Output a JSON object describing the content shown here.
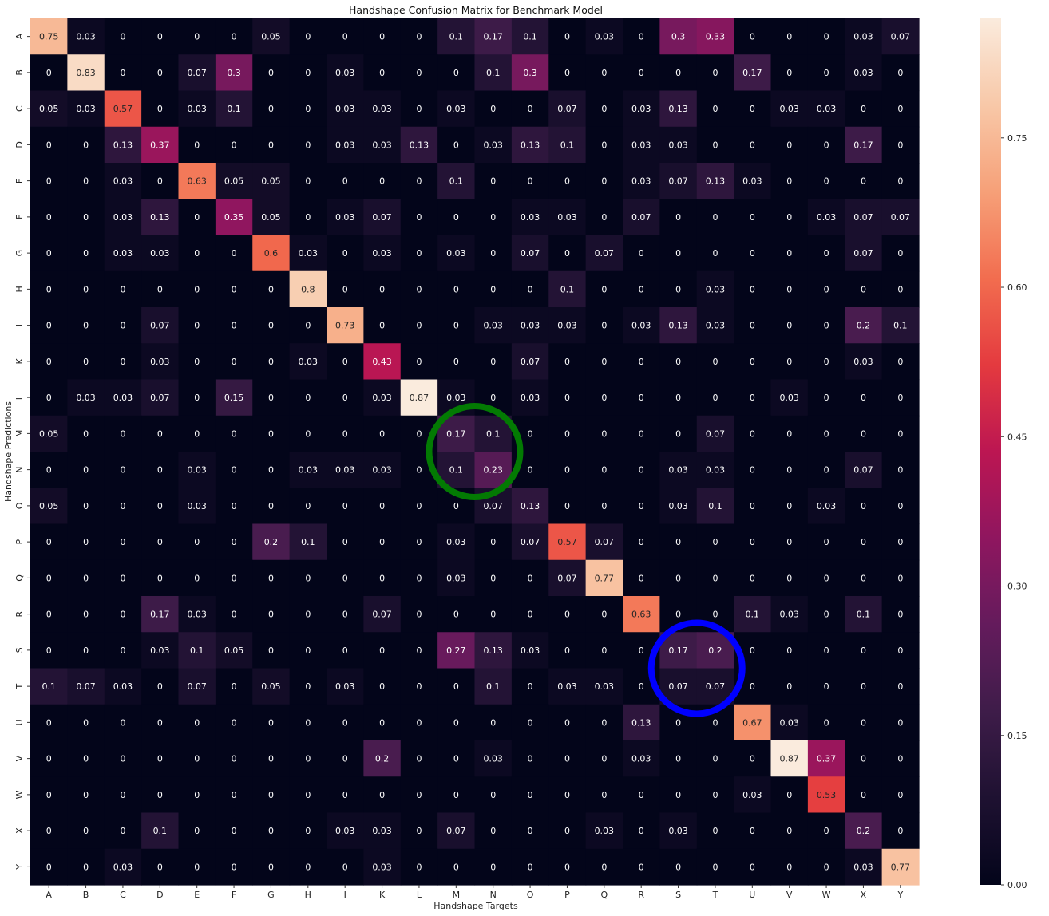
{
  "chart_data": {
    "type": "heatmap",
    "title": "Handshape Confusion Matrix for Benchmark Model",
    "xlabel": "Handshape Targets",
    "ylabel": "Handshape Predictions",
    "x_categories": [
      "A",
      "B",
      "C",
      "D",
      "E",
      "F",
      "G",
      "H",
      "I",
      "K",
      "L",
      "M",
      "N",
      "O",
      "P",
      "Q",
      "R",
      "S",
      "T",
      "U",
      "V",
      "W",
      "X",
      "Y"
    ],
    "y_categories": [
      "A",
      "B",
      "C",
      "D",
      "E",
      "F",
      "G",
      "H",
      "I",
      "K",
      "L",
      "M",
      "N",
      "O",
      "P",
      "Q",
      "R",
      "S",
      "T",
      "U",
      "V",
      "W",
      "X",
      "Y"
    ],
    "values": [
      [
        0.75,
        0.03,
        0,
        0,
        0,
        0,
        0.05,
        0,
        0,
        0,
        0,
        0.1,
        0.17,
        0.1,
        0,
        0.03,
        0,
        0.3,
        0.33,
        0,
        0,
        0,
        0.03,
        0.07
      ],
      [
        0,
        0.83,
        0,
        0,
        0.07,
        0.3,
        0,
        0,
        0.03,
        0,
        0,
        0,
        0.1,
        0.3,
        0,
        0,
        0,
        0,
        0,
        0.17,
        0,
        0,
        0.03,
        0
      ],
      [
        0.05,
        0.03,
        0.57,
        0,
        0.03,
        0.1,
        0,
        0,
        0.03,
        0.03,
        0,
        0.03,
        0,
        0,
        0.07,
        0,
        0.03,
        0.13,
        0,
        0,
        0.03,
        0.03,
        0,
        0
      ],
      [
        0,
        0,
        0.13,
        0.37,
        0,
        0,
        0,
        0,
        0.03,
        0.03,
        0.13,
        0,
        0.03,
        0.13,
        0.1,
        0,
        0.03,
        0.03,
        0,
        0,
        0,
        0,
        0.17,
        0
      ],
      [
        0,
        0,
        0.03,
        0,
        0.63,
        0.05,
        0.05,
        0,
        0,
        0,
        0,
        0.1,
        0,
        0,
        0,
        0,
        0.03,
        0.07,
        0.13,
        0.03,
        0,
        0,
        0,
        0
      ],
      [
        0,
        0,
        0.03,
        0.13,
        0,
        0.35,
        0.05,
        0,
        0.03,
        0.07,
        0,
        0,
        0,
        0.03,
        0.03,
        0,
        0.07,
        0,
        0,
        0,
        0,
        0.03,
        0.07,
        0.07
      ],
      [
        0,
        0,
        0.03,
        0.03,
        0,
        0,
        0.6,
        0.03,
        0,
        0.03,
        0,
        0.03,
        0,
        0.07,
        0,
        0.07,
        0,
        0,
        0,
        0,
        0,
        0,
        0.07,
        0
      ],
      [
        0,
        0,
        0,
        0,
        0,
        0,
        0,
        0.8,
        0,
        0,
        0,
        0,
        0,
        0,
        0.1,
        0,
        0,
        0,
        0.03,
        0,
        0,
        0,
        0,
        0
      ],
      [
        0,
        0,
        0,
        0.07,
        0,
        0,
        0,
        0,
        0.73,
        0,
        0,
        0,
        0.03,
        0.03,
        0.03,
        0,
        0.03,
        0.13,
        0.03,
        0,
        0,
        0,
        0.2,
        0.1
      ],
      [
        0,
        0,
        0,
        0.03,
        0,
        0,
        0,
        0.03,
        0,
        0.43,
        0,
        0,
        0,
        0.07,
        0,
        0,
        0,
        0,
        0,
        0,
        0,
        0,
        0.03,
        0
      ],
      [
        0,
        0.03,
        0.03,
        0.07,
        0,
        0.15,
        0,
        0,
        0,
        0.03,
        0.87,
        0.03,
        0,
        0.03,
        0,
        0,
        0,
        0,
        0,
        0,
        0.03,
        0,
        0,
        0
      ],
      [
        0.05,
        0,
        0,
        0,
        0,
        0,
        0,
        0,
        0,
        0,
        0,
        0.17,
        0.1,
        0,
        0,
        0,
        0,
        0,
        0.07,
        0,
        0,
        0,
        0,
        0
      ],
      [
        0,
        0,
        0,
        0,
        0.03,
        0,
        0,
        0.03,
        0.03,
        0.03,
        0,
        0.1,
        0.23,
        0,
        0,
        0,
        0,
        0.03,
        0.03,
        0,
        0,
        0,
        0.07,
        0
      ],
      [
        0.05,
        0,
        0,
        0,
        0.03,
        0,
        0,
        0,
        0,
        0,
        0,
        0,
        0.07,
        0.13,
        0,
        0,
        0,
        0.03,
        0.1,
        0,
        0,
        0.03,
        0,
        0
      ],
      [
        0,
        0,
        0,
        0,
        0,
        0,
        0.2,
        0.1,
        0,
        0,
        0,
        0.03,
        0,
        0.07,
        0.57,
        0.07,
        0,
        0,
        0,
        0,
        0,
        0,
        0,
        0
      ],
      [
        0,
        0,
        0,
        0,
        0,
        0,
        0,
        0,
        0,
        0,
        0,
        0.03,
        0,
        0,
        0.07,
        0.77,
        0,
        0,
        0,
        0,
        0,
        0,
        0,
        0
      ],
      [
        0,
        0,
        0,
        0.17,
        0.03,
        0,
        0,
        0,
        0,
        0.07,
        0,
        0,
        0,
        0,
        0,
        0,
        0.63,
        0,
        0,
        0.1,
        0.03,
        0,
        0.1,
        0
      ],
      [
        0,
        0,
        0,
        0.03,
        0.1,
        0.05,
        0,
        0,
        0,
        0,
        0,
        0.27,
        0.13,
        0.03,
        0,
        0,
        0,
        0.17,
        0.2,
        0,
        0,
        0,
        0,
        0
      ],
      [
        0.1,
        0.07,
        0.03,
        0,
        0.07,
        0,
        0.05,
        0,
        0.03,
        0,
        0,
        0,
        0.1,
        0,
        0.03,
        0.03,
        0,
        0.07,
        0.07,
        0,
        0,
        0,
        0,
        0
      ],
      [
        0,
        0,
        0,
        0,
        0,
        0,
        0,
        0,
        0,
        0,
        0,
        0,
        0,
        0,
        0,
        0,
        0.13,
        0,
        0,
        0.67,
        0.03,
        0,
        0,
        0
      ],
      [
        0,
        0,
        0,
        0,
        0,
        0,
        0,
        0,
        0,
        0.2,
        0,
        0,
        0.03,
        0,
        0,
        0,
        0.03,
        0,
        0,
        0,
        0.87,
        0.37,
        0,
        0
      ],
      [
        0,
        0,
        0,
        0,
        0,
        0,
        0,
        0,
        0,
        0,
        0,
        0,
        0,
        0,
        0,
        0,
        0,
        0,
        0,
        0.03,
        0,
        0.53,
        0,
        0
      ],
      [
        0,
        0,
        0,
        0.1,
        0,
        0,
        0,
        0,
        0.03,
        0.03,
        0,
        0.07,
        0,
        0,
        0,
        0.03,
        0,
        0.03,
        0,
        0,
        0,
        0,
        0.2,
        0
      ],
      [
        0,
        0,
        0.03,
        0,
        0,
        0,
        0,
        0,
        0,
        0.03,
        0,
        0,
        0,
        0,
        0,
        0,
        0,
        0,
        0,
        0,
        0,
        0,
        0.03,
        0.77
      ]
    ],
    "colorbar": {
      "min": 0.0,
      "max": 0.87,
      "ticks": [
        "0.00",
        "0.15",
        "0.30",
        "0.45",
        "0.60",
        "0.75"
      ]
    },
    "annotations": [
      {
        "shape": "circle",
        "color": "#037a03",
        "around": [
          "M",
          "N"
        ],
        "rows": [
          "M",
          "N"
        ]
      },
      {
        "shape": "circle",
        "color": "#0000ff",
        "around": [
          "S",
          "T"
        ],
        "rows": [
          "S",
          "T"
        ]
      }
    ],
    "grid": false,
    "legend": "colorbar-right"
  }
}
